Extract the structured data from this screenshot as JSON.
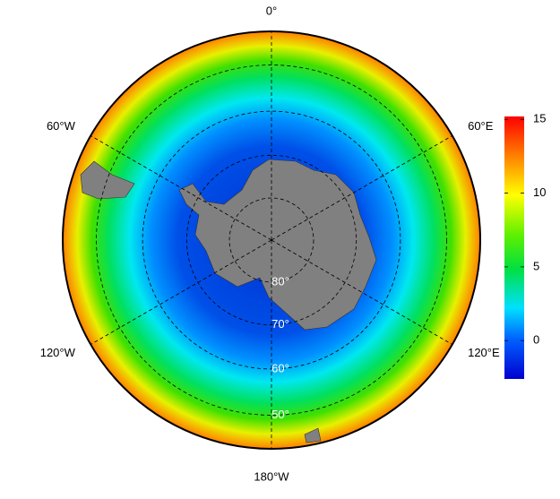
{
  "map": {
    "meridians": [
      {
        "value": 0,
        "label": "0°"
      },
      {
        "value": 60,
        "label": "60°E"
      },
      {
        "value": 120,
        "label": "120°E"
      },
      {
        "value": 180,
        "label": "180°W"
      },
      {
        "value": -120,
        "label": "120°W"
      },
      {
        "value": -60,
        "label": "60°W"
      }
    ],
    "parallels": [
      {
        "value": 80,
        "label": "80°"
      },
      {
        "value": 70,
        "label": "70°"
      },
      {
        "value": 60,
        "label": "60°"
      },
      {
        "value": 50,
        "label": "50°"
      }
    ]
  },
  "colorbar": {
    "lim": [
      -2.6,
      15.2
    ],
    "ticks": [
      0,
      5,
      10,
      15
    ]
  }
}
